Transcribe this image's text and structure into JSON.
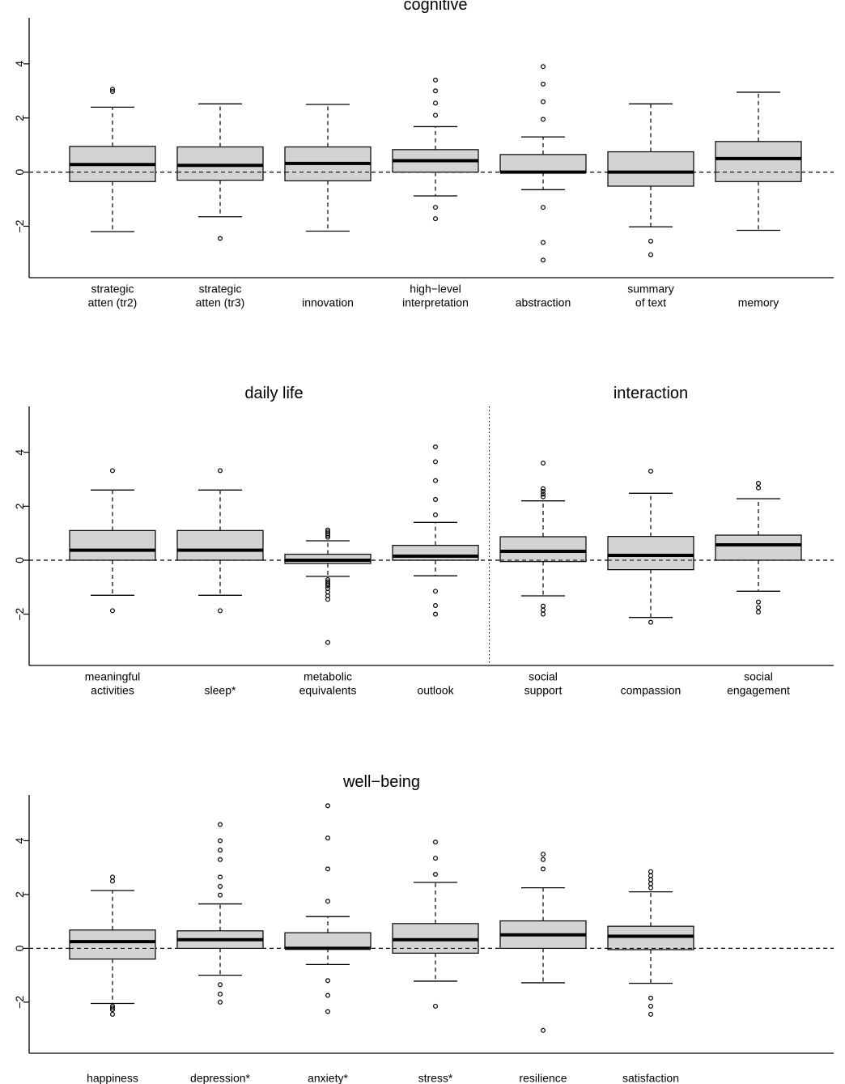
{
  "chart_data": [
    {
      "type": "boxplot",
      "groups": [
        {
          "title": "cognitive",
          "categories": [
            {
              "label": [
                "strategic",
                "atten (tr2)"
              ],
              "whisker_low": -2.2,
              "q1": -0.35,
              "median": 0.28,
              "q3": 0.95,
              "whisker_high": 2.4,
              "outliers": [
                2.98,
                3.06
              ]
            },
            {
              "label": [
                "strategic",
                "atten (tr3)"
              ],
              "whisker_low": -1.65,
              "q1": -0.3,
              "median": 0.25,
              "q3": 0.93,
              "whisker_high": 2.52,
              "outliers": [
                -2.45
              ]
            },
            {
              "label": [
                "innovation"
              ],
              "whisker_low": -2.18,
              "q1": -0.32,
              "median": 0.32,
              "q3": 0.93,
              "whisker_high": 2.5,
              "outliers": []
            },
            {
              "label": [
                "high−level",
                "interpretation"
              ],
              "whisker_low": -0.88,
              "q1": 0.0,
              "median": 0.42,
              "q3": 0.83,
              "whisker_high": 1.68,
              "outliers": [
                3.4,
                3.0,
                2.55,
                2.1,
                -1.3,
                -1.72
              ]
            },
            {
              "label": [
                "abstraction"
              ],
              "whisker_low": -0.65,
              "q1": 0.0,
              "median": 0.0,
              "q3": 0.65,
              "whisker_high": 1.3,
              "outliers": [
                3.9,
                3.25,
                2.6,
                1.95,
                -1.3,
                -2.6,
                -3.25
              ]
            },
            {
              "label": [
                "summary",
                "of text"
              ],
              "whisker_low": -2.02,
              "q1": -0.52,
              "median": 0.0,
              "q3": 0.75,
              "whisker_high": 2.52,
              "outliers": [
                -2.55,
                -3.05
              ]
            },
            {
              "label": [
                "memory"
              ],
              "whisker_low": -2.15,
              "q1": -0.35,
              "median": 0.5,
              "q3": 1.13,
              "whisker_high": 2.95,
              "outliers": []
            }
          ]
        },
        {
          "title": "daily life",
          "categories": [
            {
              "label": [
                "meaningful",
                "activities"
              ],
              "whisker_low": -1.3,
              "q1": 0.0,
              "median": 0.37,
              "q3": 1.1,
              "whisker_high": 2.6,
              "outliers": [
                3.32,
                -1.87
              ]
            },
            {
              "label": [
                "sleep*"
              ],
              "whisker_low": -1.3,
              "q1": 0.0,
              "median": 0.37,
              "q3": 1.1,
              "whisker_high": 2.6,
              "outliers": [
                3.32,
                -1.87
              ]
            },
            {
              "label": [
                "metabolic",
                "equivalents"
              ],
              "whisker_low": -0.6,
              "q1": -0.12,
              "median": 0.0,
              "q3": 0.22,
              "whisker_high": 0.72,
              "outliers": [
                1.12,
                1.05,
                0.98,
                0.92,
                0.85,
                -0.72,
                -0.8,
                -0.88,
                -0.95,
                -1.05,
                -1.18,
                -1.32,
                -1.45,
                -3.05
              ]
            },
            {
              "label": [
                "outlook"
              ],
              "whisker_low": -0.58,
              "q1": 0.0,
              "median": 0.15,
              "q3": 0.55,
              "whisker_high": 1.4,
              "outliers": [
                4.2,
                3.65,
                2.95,
                2.25,
                1.68,
                -1.15,
                -1.68,
                -2.0
              ]
            }
          ]
        },
        {
          "title": "interaction",
          "categories": [
            {
              "label": [
                "social",
                "support"
              ],
              "whisker_low": -1.32,
              "q1": -0.05,
              "median": 0.33,
              "q3": 0.87,
              "whisker_high": 2.2,
              "outliers": [
                3.6,
                2.65,
                2.55,
                2.45,
                2.35,
                -1.7,
                -1.85,
                -2.0
              ]
            },
            {
              "label": [
                "compassion"
              ],
              "whisker_low": -2.12,
              "q1": -0.35,
              "median": 0.18,
              "q3": 0.88,
              "whisker_high": 2.48,
              "outliers": [
                3.3,
                -2.3
              ]
            },
            {
              "label": [
                "social",
                "engagement"
              ],
              "whisker_low": -1.15,
              "q1": 0.0,
              "median": 0.57,
              "q3": 0.93,
              "whisker_high": 2.28,
              "outliers": [
                2.85,
                2.68,
                -1.55,
                -1.75,
                -1.92
              ]
            }
          ]
        },
        {
          "title": "well−being",
          "categories": [
            {
              "label": [
                "happiness"
              ],
              "whisker_low": -2.05,
              "q1": -0.4,
              "median": 0.25,
              "q3": 0.68,
              "whisker_high": 2.15,
              "outliers": [
                2.65,
                2.5,
                -2.15,
                -2.22,
                -2.28,
                -2.45
              ]
            },
            {
              "label": [
                "depression*"
              ],
              "whisker_low": -1.0,
              "q1": 0.0,
              "median": 0.32,
              "q3": 0.65,
              "whisker_high": 1.65,
              "outliers": [
                4.6,
                4.0,
                3.65,
                3.3,
                2.65,
                2.3,
                1.98,
                -1.35,
                -1.7,
                -2.0
              ]
            },
            {
              "label": [
                "anxiety*"
              ],
              "whisker_low": -0.6,
              "q1": 0.0,
              "median": 0.0,
              "q3": 0.58,
              "whisker_high": 1.18,
              "outliers": [
                5.3,
                4.1,
                2.95,
                1.75,
                -1.2,
                -1.75,
                -2.35
              ]
            },
            {
              "label": [
                "stress*"
              ],
              "whisker_low": -1.22,
              "q1": -0.18,
              "median": 0.32,
              "q3": 0.92,
              "whisker_high": 2.45,
              "outliers": [
                3.95,
                3.35,
                2.75,
                -2.15
              ]
            },
            {
              "label": [
                "resilience"
              ],
              "whisker_low": -1.28,
              "q1": 0.0,
              "median": 0.5,
              "q3": 1.02,
              "whisker_high": 2.25,
              "outliers": [
                3.5,
                3.3,
                2.95,
                -3.05
              ]
            },
            {
              "label": [
                "satisfaction"
              ],
              "whisker_low": -1.3,
              "q1": -0.05,
              "median": 0.45,
              "q3": 0.82,
              "whisker_high": 2.1,
              "outliers": [
                2.85,
                2.7,
                2.55,
                2.4,
                2.25,
                -1.85,
                -2.15,
                -2.45
              ]
            }
          ]
        }
      ],
      "panels": [
        {
          "groups": [
            "cognitive"
          ],
          "ylim": [
            -3.9,
            5.7
          ],
          "yticks": [
            -2,
            0,
            2,
            4
          ],
          "reference_line": 0
        },
        {
          "groups": [
            "daily life",
            "interaction"
          ],
          "ylim": [
            -3.9,
            5.7
          ],
          "yticks": [
            -2,
            0,
            2,
            4
          ],
          "reference_line": 0,
          "separator": "dotted"
        },
        {
          "groups": [
            "well−being"
          ],
          "ylim": [
            -3.9,
            5.7
          ],
          "yticks": [
            -2,
            0,
            2,
            4
          ],
          "reference_line": 0
        }
      ],
      "box_fill": "#d3d3d3",
      "line_color": "#000000"
    }
  ]
}
